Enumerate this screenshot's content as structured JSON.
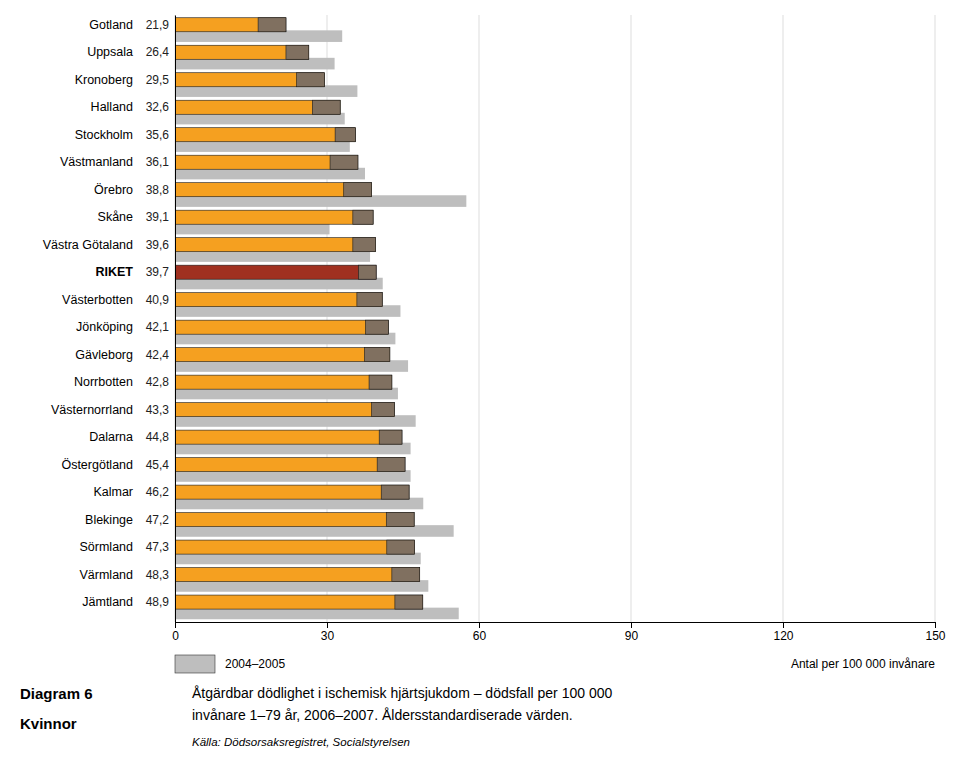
{
  "chart_data": {
    "type": "bar",
    "orientation": "horizontal",
    "title": "Åtgärdbar dödlighet i ischemisk hjärtsjukdom – dödsfall per 100 000",
    "subtitle": "invånare 1–79 år, 2006–2007. Åldersstandardiserade värden.",
    "annotations": [
      "Diagram 6",
      "Kvinnor",
      "Källa: Dödsorsaksregistret, Socialstyrelsen"
    ],
    "xlabel": "Antal per 100 000 invånare",
    "categories": [
      "Gotland",
      "Uppsala",
      "Kronoberg",
      "Halland",
      "Stockholm",
      "Västmanland",
      "Örebro",
      "Skåne",
      "Västra Götaland",
      "RIKET",
      "Västerbotten",
      "Jönköping",
      "Gävleborg",
      "Norrbotten",
      "Västernorrland",
      "Dalarna",
      "Östergötland",
      "Kalmar",
      "Blekinge",
      "Sörmland",
      "Värmland",
      "Jämtland"
    ],
    "series": [
      {
        "values": [
          21.9,
          26.4,
          29.5,
          32.6,
          35.6,
          36.1,
          38.8,
          39.1,
          39.6,
          39.7,
          40.9,
          42.1,
          42.4,
          42.8,
          43.3,
          44.8,
          45.4,
          46.2,
          47.2,
          47.3,
          48.3,
          48.9
        ],
        "value_labels": [
          "21,9",
          "26,4",
          "29,5",
          "32,6",
          "35,6",
          "36,1",
          "38,8",
          "39,1",
          "39,6",
          "39,7",
          "40,9",
          "42,1",
          "42,4",
          "42,8",
          "43,3",
          "44,8",
          "45,4",
          "46,2",
          "47,2",
          "47,3",
          "48,3",
          "48,9"
        ],
        "colors": [
          "#F5A020",
          "#F5A020",
          "#F5A020",
          "#F5A020",
          "#F5A020",
          "#F5A020",
          "#F5A020",
          "#F5A020",
          "#F5A020",
          "#A03020",
          "#F5A020",
          "#F5A020",
          "#F5A020",
          "#F5A020",
          "#F5A020",
          "#F5A020",
          "#F5A020",
          "#F5A020",
          "#F5A020",
          "#F5A020",
          "#F5A020",
          "#F5A020"
        ]
      },
      {
        "values": [
          5.5,
          4.5,
          5.5,
          5.5,
          4.0,
          5.5,
          5.5,
          4.0,
          4.5,
          3.5,
          5.0,
          4.5,
          5.0,
          4.5,
          4.5,
          4.5,
          5.5,
          5.5,
          5.5,
          5.5,
          5.5,
          5.5
        ],
        "color": "#807060"
      },
      {
        "name": "2004–2005",
        "values": [
          33.0,
          31.5,
          36.0,
          33.5,
          34.5,
          37.5,
          57.5,
          30.5,
          38.5,
          41.0,
          44.5,
          43.5,
          46.0,
          44.0,
          47.5,
          46.5,
          46.5,
          49.0,
          55.0,
          48.5,
          50.0,
          56.0
        ],
        "color": "#BEBEBE"
      }
    ],
    "xlim": [
      0,
      150
    ],
    "xticks": [
      0,
      30,
      60,
      90,
      120,
      150
    ],
    "grid": true,
    "legend": "bottom",
    "data_labels": true
  }
}
